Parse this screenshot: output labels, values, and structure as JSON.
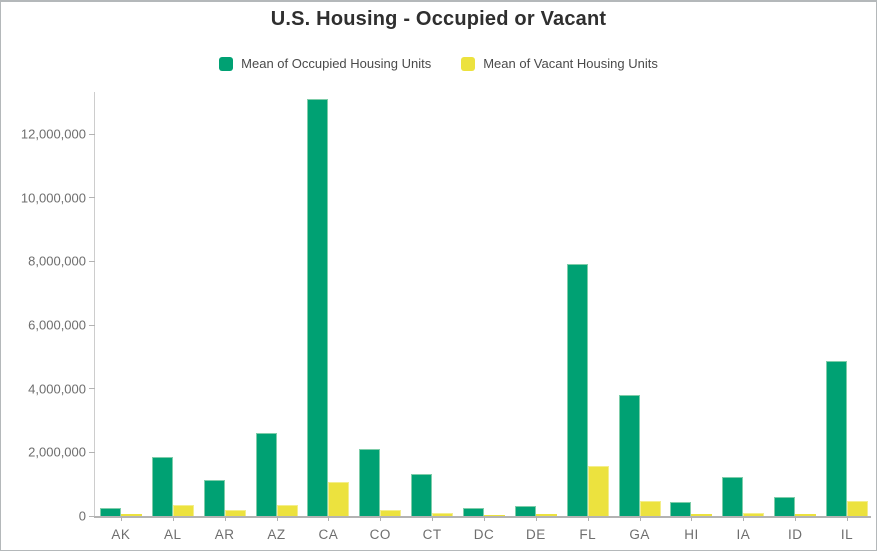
{
  "title": "U.S. Housing - Occupied or Vacant",
  "colors": {
    "occupied_fill": "#00a173",
    "occupied_stroke": "#7fcdaa",
    "vacant_fill": "#ece23e",
    "vacant_stroke": "#f4ee8a",
    "axis_line": "#b3b3b3",
    "axis_label": "#6e6e6e",
    "title_text": "#2f2f2f",
    "legend_text": "#4a4a4a",
    "frame_border": "#b4b8ba"
  },
  "legend": {
    "items": [
      {
        "label": "Mean of Occupied Housing Units",
        "color": "#00a173"
      },
      {
        "label": "Mean of Vacant Housing Units",
        "color": "#ece23e"
      }
    ]
  },
  "chart_data": {
    "type": "bar",
    "title": "U.S. Housing - Occupied or Vacant",
    "xlabel": "",
    "ylabel": "",
    "grid": false,
    "legend_position": "top",
    "categories": [
      "AK",
      "AL",
      "AR",
      "AZ",
      "CA",
      "CO",
      "CT",
      "DC",
      "DE",
      "FL",
      "GA",
      "HI",
      "IA",
      "ID",
      "IL"
    ],
    "series": [
      {
        "name": "Mean of Occupied Housing Units",
        "color": "#00a173",
        "stroke": "#7fcdaa",
        "values": [
          260000,
          1860000,
          1140000,
          2610000,
          13100000,
          2100000,
          1330000,
          260000,
          330000,
          7920000,
          3790000,
          430000,
          1230000,
          610000,
          4860000
        ]
      },
      {
        "name": "Mean of Vacant Housing Units",
        "color": "#ece23e",
        "stroke": "#f4ee8a",
        "values": [
          50000,
          360000,
          190000,
          360000,
          1070000,
          180000,
          100000,
          30000,
          50000,
          1580000,
          460000,
          60000,
          100000,
          60000,
          470000
        ]
      }
    ],
    "ylim": [
      0,
      13320000
    ],
    "y_ticks": [
      0,
      2000000,
      4000000,
      6000000,
      8000000,
      10000000,
      12000000
    ],
    "y_tick_labels": [
      "0",
      "2,000,000",
      "4,000,000",
      "6,000,000",
      "8,000,000",
      "10,000,000",
      "12,000,000"
    ]
  }
}
